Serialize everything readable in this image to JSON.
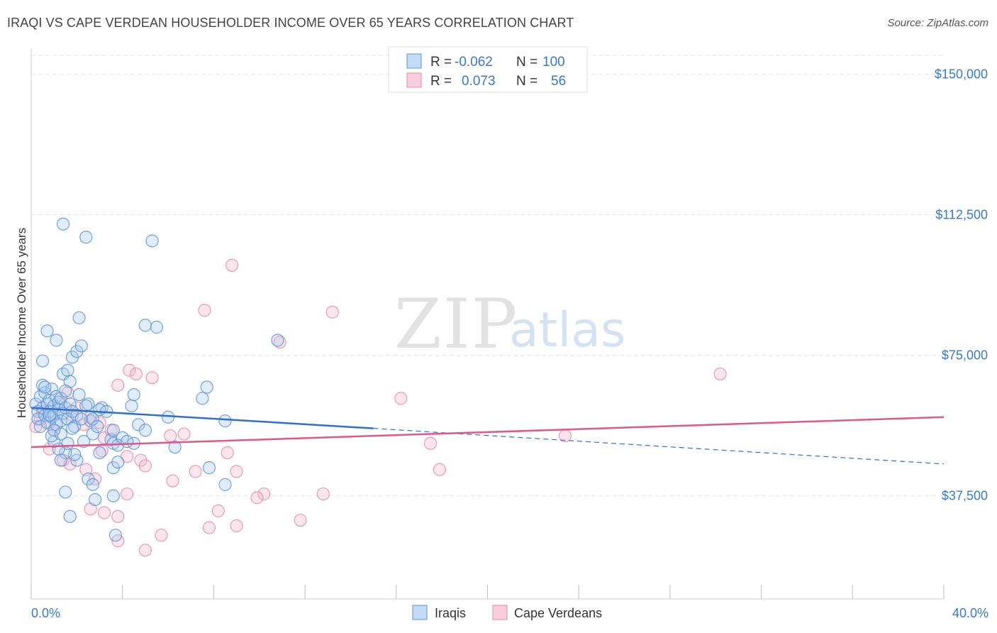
{
  "title": "IRAQI VS CAPE VERDEAN HOUSEHOLDER INCOME OVER 65 YEARS CORRELATION CHART",
  "source": "Source: ZipAtlas.com",
  "watermark": {
    "zip": "ZIP",
    "atlas": "atlas"
  },
  "legend_top": [
    {
      "r_label": "R =",
      "r_value": "-0.062",
      "n_label": "N =",
      "n_value": "100"
    },
    {
      "r_label": "R =",
      "r_value": "0.073",
      "n_label": "N =",
      "n_value": "56"
    }
  ],
  "chart_data": {
    "type": "scatter",
    "title": "IRAQI VS CAPE VERDEAN HOUSEHOLDER INCOME OVER 65 YEARS CORRELATION CHART",
    "xlabel": "",
    "ylabel": "Householder Income Over 65 years",
    "xlim": [
      0,
      40
    ],
    "ylim": [
      10000,
      155000
    ],
    "x_tick_labels": [
      "0.0%",
      "40.0%"
    ],
    "y_ticks": [
      {
        "value": 37500,
        "label": "$37,500"
      },
      {
        "value": 75000,
        "label": "$75,000"
      },
      {
        "value": 112500,
        "label": "$112,500"
      },
      {
        "value": 150000,
        "label": "$150,000"
      }
    ],
    "grid": true,
    "legend_position": "bottom-center",
    "colors": {
      "iraqis": "#5b93d8",
      "cape_verdeans": "#e88aa9",
      "iraqis_line": "#2f6fcf",
      "cape_line": "#e0578a",
      "axis_text": "#3a78c9"
    },
    "series": [
      {
        "name": "Iraqis",
        "r": -0.062,
        "n": 100,
        "trend": {
          "x": [
            0,
            15
          ],
          "y": [
            61000,
            55500
          ],
          "dashed_to": [
            40,
            46000
          ]
        },
        "points": [
          [
            0.2,
            62000
          ],
          [
            0.3,
            60000
          ],
          [
            0.3,
            58000
          ],
          [
            0.4,
            64000
          ],
          [
            0.4,
            56000
          ],
          [
            0.5,
            67000
          ],
          [
            0.5,
            61000
          ],
          [
            0.6,
            59000
          ],
          [
            0.6,
            65000
          ],
          [
            0.7,
            62000
          ],
          [
            0.7,
            57000
          ],
          [
            0.8,
            63000
          ],
          [
            0.8,
            60000
          ],
          [
            0.9,
            58500
          ],
          [
            0.9,
            66000
          ],
          [
            1.0,
            61500
          ],
          [
            1.0,
            59000
          ],
          [
            1.1,
            64000
          ],
          [
            1.1,
            56500
          ],
          [
            1.2,
            62500
          ],
          [
            1.2,
            60500
          ],
          [
            1.3,
            57500
          ],
          [
            1.3,
            63500
          ],
          [
            1.4,
            59500
          ],
          [
            1.5,
            61000
          ],
          [
            1.6,
            58000
          ],
          [
            1.7,
            62000
          ],
          [
            1.8,
            60000
          ],
          [
            1.9,
            56000
          ],
          [
            2.0,
            59000
          ],
          [
            0.5,
            73500
          ],
          [
            0.7,
            81500
          ],
          [
            1.1,
            79000
          ],
          [
            1.4,
            70000
          ],
          [
            1.6,
            71000
          ],
          [
            1.8,
            74500
          ],
          [
            2.0,
            76000
          ],
          [
            2.2,
            77500
          ],
          [
            2.1,
            85000
          ],
          [
            1.7,
            68000
          ],
          [
            1.4,
            110000
          ],
          [
            2.4,
            106500
          ],
          [
            5.3,
            105500
          ],
          [
            5.0,
            83000
          ],
          [
            5.5,
            82500
          ],
          [
            10.8,
            79000
          ],
          [
            7.7,
            66500
          ],
          [
            7.5,
            63500
          ],
          [
            4.4,
            61500
          ],
          [
            4.5,
            64500
          ],
          [
            3.1,
            61000
          ],
          [
            3.0,
            60500
          ],
          [
            2.5,
            62000
          ],
          [
            2.6,
            57500
          ],
          [
            2.7,
            58000
          ],
          [
            3.5,
            52500
          ],
          [
            3.6,
            51500
          ],
          [
            3.8,
            51000
          ],
          [
            3.6,
            55000
          ],
          [
            4.5,
            51500
          ],
          [
            4.7,
            56500
          ],
          [
            5.0,
            55000
          ],
          [
            6.0,
            58500
          ],
          [
            8.5,
            57500
          ],
          [
            6.3,
            50500
          ],
          [
            2.0,
            47000
          ],
          [
            1.9,
            48500
          ],
          [
            1.5,
            49000
          ],
          [
            1.6,
            51500
          ],
          [
            1.2,
            50000
          ],
          [
            1.0,
            52000
          ],
          [
            1.3,
            47000
          ],
          [
            2.3,
            52000
          ],
          [
            2.7,
            54000
          ],
          [
            3.0,
            49000
          ],
          [
            3.6,
            45000
          ],
          [
            3.8,
            46500
          ],
          [
            2.5,
            42000
          ],
          [
            2.7,
            40500
          ],
          [
            1.5,
            38500
          ],
          [
            2.8,
            36500
          ],
          [
            3.6,
            37500
          ],
          [
            8.5,
            40500
          ],
          [
            7.8,
            45000
          ],
          [
            1.7,
            32000
          ],
          [
            3.7,
            27000
          ],
          [
            4.0,
            53000
          ],
          [
            4.2,
            52000
          ],
          [
            2.2,
            58000
          ],
          [
            2.4,
            61500
          ],
          [
            1.8,
            55500
          ],
          [
            1.0,
            55000
          ],
          [
            0.9,
            53500
          ],
          [
            1.3,
            54000
          ],
          [
            2.9,
            56000
          ],
          [
            3.3,
            60000
          ],
          [
            2.1,
            64500
          ],
          [
            1.5,
            65500
          ],
          [
            0.6,
            66500
          ],
          [
            0.8,
            59000
          ]
        ]
      },
      {
        "name": "Cape Verdeans",
        "r": 0.073,
        "n": 56,
        "trend": {
          "x": [
            0,
            40
          ],
          "y": [
            50500,
            58500
          ]
        },
        "points": [
          [
            0.2,
            56000
          ],
          [
            0.4,
            58000
          ],
          [
            0.5,
            60000
          ],
          [
            0.8,
            57000
          ],
          [
            1.0,
            55000
          ],
          [
            1.3,
            62000
          ],
          [
            1.6,
            65000
          ],
          [
            1.8,
            59000
          ],
          [
            2.0,
            61000
          ],
          [
            2.3,
            56500
          ],
          [
            2.6,
            58500
          ],
          [
            3.0,
            57000
          ],
          [
            3.2,
            53000
          ],
          [
            3.5,
            55000
          ],
          [
            4.3,
            71000
          ],
          [
            4.6,
            70000
          ],
          [
            5.3,
            69000
          ],
          [
            3.8,
            67000
          ],
          [
            0.8,
            50000
          ],
          [
            1.4,
            47000
          ],
          [
            1.7,
            46000
          ],
          [
            2.4,
            44500
          ],
          [
            2.8,
            42000
          ],
          [
            3.1,
            49500
          ],
          [
            4.2,
            48000
          ],
          [
            4.8,
            47000
          ],
          [
            5.0,
            45500
          ],
          [
            6.1,
            53500
          ],
          [
            6.7,
            54000
          ],
          [
            6.2,
            41500
          ],
          [
            7.2,
            44000
          ],
          [
            8.6,
            49000
          ],
          [
            9.0,
            44000
          ],
          [
            8.8,
            99000
          ],
          [
            7.6,
            87000
          ],
          [
            13.2,
            86500
          ],
          [
            10.9,
            78500
          ],
          [
            16.2,
            63500
          ],
          [
            17.5,
            51500
          ],
          [
            17.9,
            44500
          ],
          [
            23.4,
            53500
          ],
          [
            30.2,
            70000
          ],
          [
            10.2,
            38000
          ],
          [
            9.9,
            37000
          ],
          [
            12.8,
            38000
          ],
          [
            8.2,
            33500
          ],
          [
            7.8,
            29000
          ],
          [
            9.0,
            29500
          ],
          [
            11.8,
            31000
          ],
          [
            4.2,
            38000
          ],
          [
            3.2,
            33000
          ],
          [
            3.8,
            32000
          ],
          [
            5.7,
            27000
          ],
          [
            3.8,
            25500
          ],
          [
            5.0,
            23000
          ],
          [
            2.6,
            34000
          ]
        ]
      }
    ]
  },
  "bottom_legend": [
    {
      "label": "Iraqis"
    },
    {
      "label": "Cape Verdeans"
    }
  ]
}
